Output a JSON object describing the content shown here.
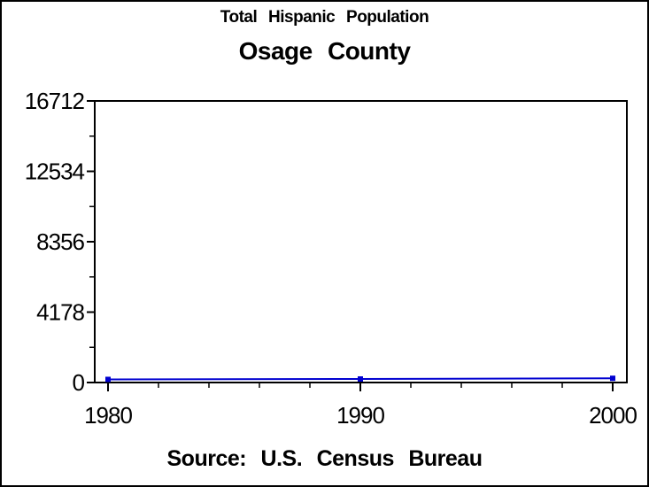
{
  "window": {
    "background": "#ffffff",
    "border_color": "#000000"
  },
  "chart_data": {
    "type": "line",
    "title": "Total Hispanic Population",
    "subtitle": "Osage County",
    "source": "Source: U.S. Census Bureau",
    "xlabel": "",
    "ylabel": "",
    "x": [
      1980,
      1990,
      2000
    ],
    "series": [
      {
        "name": "Total Hispanic Population",
        "values": [
          185,
          210,
          250
        ],
        "color": "#0000d0",
        "marker": "square"
      }
    ],
    "xlim": [
      1979.5,
      2000.6
    ],
    "ylim": [
      0,
      16712
    ],
    "yticks": [
      0,
      4178,
      8356,
      12534,
      16712
    ],
    "yticks_minor": [
      2089,
      6267,
      10445,
      14623
    ],
    "xticks": [
      1980,
      1990,
      2000
    ],
    "xticks_minor": [
      1982,
      1984,
      1986,
      1988,
      1992,
      1994,
      1996,
      1998
    ],
    "grid": false,
    "legend": false,
    "frame": true,
    "axis_color": "#000000",
    "tick_label_color": "#000000"
  }
}
